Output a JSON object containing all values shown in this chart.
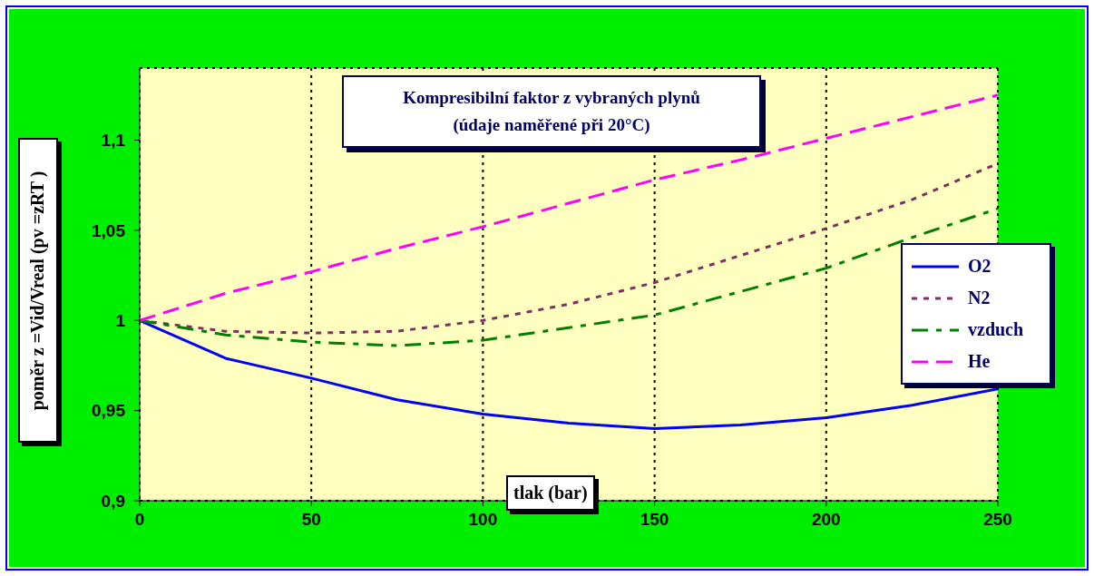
{
  "chart_data": {
    "type": "line",
    "title": "Kompresibilní faktor z  vybraných plynů",
    "subtitle": "(údaje naměřené při 20°C)",
    "xlabel": "tlak (bar)",
    "ylabel": "poměr z =Vid/Vreal (pv =zRT )",
    "x": [
      0,
      25,
      50,
      75,
      100,
      125,
      150,
      175,
      200,
      225,
      250
    ],
    "series": [
      {
        "name": "O2",
        "color": "#0000ff",
        "line_style": "solid",
        "values": [
          1,
          0.979,
          0.968,
          0.956,
          0.948,
          0.943,
          0.94,
          0.942,
          0.946,
          0.953,
          0.962
        ]
      },
      {
        "name": "N2",
        "color": "#7f2f62",
        "line_style": "dotted",
        "values": [
          1,
          0.994,
          0.993,
          0.994,
          1.0,
          1.009,
          1.021,
          1.036,
          1.051,
          1.067,
          1.087
        ]
      },
      {
        "name": "vzduch",
        "color": "#008000",
        "line_style": "dashdot",
        "values": [
          1,
          0.992,
          0.988,
          0.986,
          0.989,
          0.996,
          1.003,
          1.016,
          1.029,
          1.046,
          1.062
        ]
      },
      {
        "name": "He",
        "color": "#ff00ff",
        "line_style": "dashed",
        "values": [
          1,
          1.015,
          1.027,
          1.04,
          1.052,
          1.065,
          1.078,
          1.089,
          1.101,
          1.113,
          1.125
        ]
      }
    ],
    "xlim": [
      0,
      250
    ],
    "xticks": [
      0,
      50,
      100,
      150,
      200,
      250
    ],
    "ylim": [
      0.9,
      1.14
    ],
    "yticks": [
      {
        "value": 0.9,
        "label": "0,9"
      },
      {
        "value": 0.95,
        "label": "0,95"
      },
      {
        "value": 1,
        "label": "1"
      },
      {
        "value": 1.05,
        "label": "1,05"
      },
      {
        "value": 1.1,
        "label": "1,1"
      }
    ],
    "grid": true,
    "legend": "right",
    "marker": "none"
  }
}
